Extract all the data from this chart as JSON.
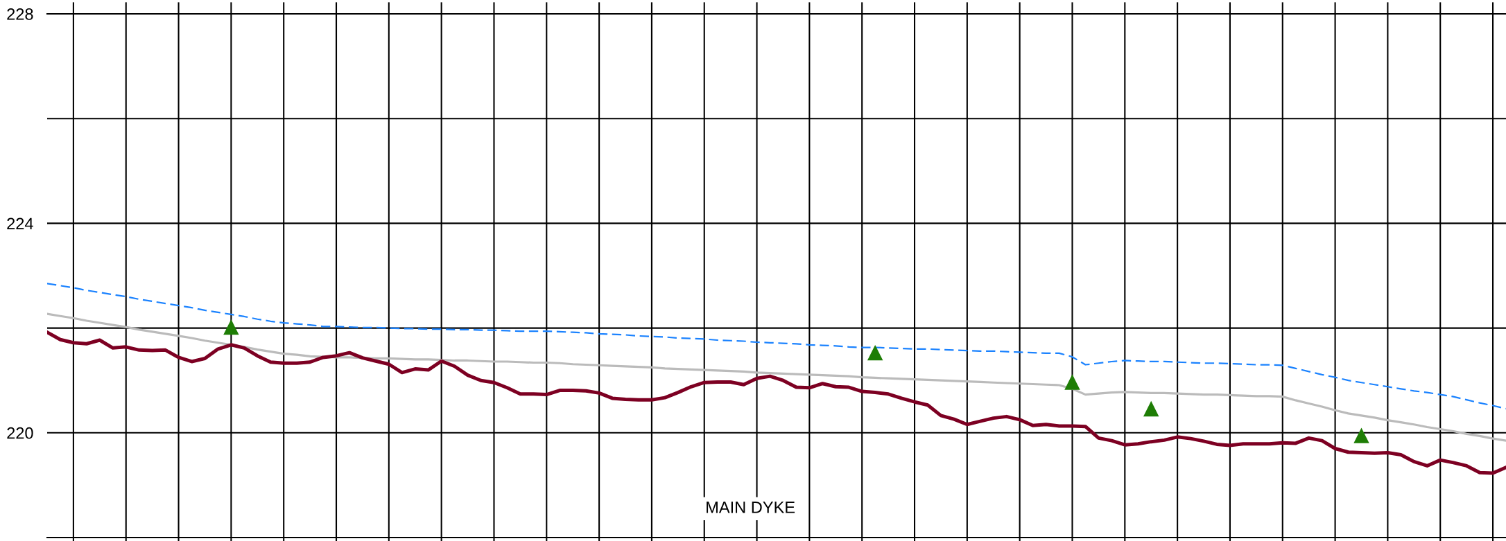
{
  "chart_data": {
    "type": "line",
    "categories": [
      null,
      null,
      null,
      null,
      null,
      null,
      null,
      null,
      null,
      null,
      null,
      null,
      null,
      null,
      null,
      null,
      null,
      null,
      null,
      null,
      null,
      null,
      null,
      null,
      null,
      null,
      null,
      null,
      null,
      null,
      null,
      null,
      null,
      null,
      null,
      null,
      null,
      null,
      null,
      null,
      null,
      null,
      null,
      null,
      null,
      null,
      null,
      null,
      null,
      null,
      null,
      null,
      null,
      null,
      null,
      null,
      null,
      null,
      null,
      null,
      null,
      null,
      null,
      null,
      null,
      null,
      null,
      null,
      null,
      null,
      null,
      null,
      null,
      null,
      null,
      null,
      null,
      null,
      null,
      null,
      null,
      null,
      null,
      null,
      null,
      null,
      null,
      null,
      null,
      null,
      null,
      null,
      null,
      null,
      null,
      null,
      null,
      null,
      null,
      null,
      null,
      null,
      null,
      null,
      null,
      null,
      null,
      null,
      null,
      null,
      null,
      null
    ],
    "series": [
      {
        "color": "#1a82ff",
        "line_style": "dashed",
        "values": [
          222.85,
          222.81,
          222.77,
          222.72,
          222.68,
          222.64,
          222.6,
          222.55,
          222.51,
          222.47,
          222.43,
          222.39,
          222.34,
          222.3,
          222.26,
          222.22,
          222.17,
          222.13,
          222.1,
          222.08,
          222.06,
          222.03,
          222.03,
          222.02,
          222.01,
          222.01,
          222.0,
          221.99,
          221.99,
          221.98,
          221.98,
          221.97,
          221.97,
          221.96,
          221.96,
          221.95,
          221.94,
          221.94,
          221.94,
          221.93,
          221.92,
          221.91,
          221.89,
          221.88,
          221.87,
          221.85,
          221.84,
          221.83,
          221.81,
          221.8,
          221.79,
          221.77,
          221.76,
          221.75,
          221.73,
          221.72,
          221.71,
          221.7,
          221.68,
          221.67,
          221.66,
          221.64,
          221.63,
          221.63,
          221.62,
          221.61,
          221.6,
          221.6,
          221.59,
          221.58,
          221.57,
          221.56,
          221.56,
          221.55,
          221.54,
          221.53,
          221.52,
          221.52,
          221.45,
          221.3,
          221.33,
          221.36,
          221.38,
          221.37,
          221.36,
          221.36,
          221.35,
          221.34,
          221.33,
          221.33,
          221.32,
          221.31,
          221.3,
          221.3,
          221.29,
          221.23,
          221.17,
          221.11,
          221.06,
          221.0,
          220.96,
          220.92,
          220.88,
          220.84,
          220.8,
          220.77,
          220.73,
          220.69,
          220.63,
          220.57,
          220.52,
          220.46
        ]
      },
      {
        "color": "#bbbbbb",
        "line_style": "solid",
        "values": [
          222.27,
          222.23,
          222.19,
          222.14,
          222.1,
          222.06,
          222.02,
          221.97,
          221.93,
          221.89,
          221.85,
          221.81,
          221.76,
          221.72,
          221.68,
          221.64,
          221.59,
          221.55,
          221.51,
          221.49,
          221.46,
          221.45,
          221.44,
          221.44,
          221.43,
          221.42,
          221.42,
          221.41,
          221.4,
          221.4,
          221.39,
          221.38,
          221.38,
          221.37,
          221.36,
          221.36,
          221.35,
          221.34,
          221.34,
          221.33,
          221.31,
          221.3,
          221.29,
          221.28,
          221.27,
          221.26,
          221.25,
          221.23,
          221.22,
          221.21,
          221.2,
          221.19,
          221.18,
          221.17,
          221.15,
          221.14,
          221.13,
          221.12,
          221.11,
          221.1,
          221.09,
          221.08,
          221.06,
          221.05,
          221.04,
          221.03,
          221.02,
          221.01,
          221.0,
          220.99,
          220.98,
          220.97,
          220.96,
          220.95,
          220.94,
          220.93,
          220.92,
          220.91,
          220.84,
          220.73,
          220.75,
          220.77,
          220.78,
          220.77,
          220.76,
          220.76,
          220.75,
          220.74,
          220.73,
          220.73,
          220.72,
          220.71,
          220.7,
          220.7,
          220.69,
          220.62,
          220.56,
          220.5,
          220.43,
          220.37,
          220.33,
          220.29,
          220.24,
          220.2,
          220.16,
          220.11,
          220.07,
          220.03,
          219.98,
          219.94,
          219.89,
          219.85
        ]
      },
      {
        "color": "#7d0022",
        "line_style": "solid",
        "values": [
          221.92,
          221.78,
          221.72,
          221.7,
          221.77,
          221.62,
          221.64,
          221.58,
          221.57,
          221.58,
          221.44,
          221.36,
          221.42,
          221.6,
          221.68,
          221.62,
          221.47,
          221.35,
          221.33,
          221.33,
          221.35,
          221.44,
          221.47,
          221.53,
          221.43,
          221.37,
          221.31,
          221.15,
          221.22,
          221.2,
          221.37,
          221.27,
          221.1,
          221.0,
          220.96,
          220.86,
          220.74,
          220.74,
          220.73,
          220.81,
          220.81,
          220.8,
          220.76,
          220.66,
          220.64,
          220.63,
          220.63,
          220.67,
          220.77,
          220.88,
          220.96,
          220.97,
          220.97,
          220.92,
          221.04,
          221.08,
          221.0,
          220.87,
          220.86,
          220.94,
          220.88,
          220.87,
          220.79,
          220.77,
          220.74,
          220.66,
          220.59,
          220.53,
          220.33,
          220.26,
          220.16,
          220.22,
          220.28,
          220.31,
          220.25,
          220.14,
          220.16,
          220.13,
          220.13,
          220.12,
          219.9,
          219.85,
          219.77,
          219.79,
          219.83,
          219.86,
          219.92,
          219.89,
          219.84,
          219.78,
          219.76,
          219.79,
          219.79,
          219.79,
          219.81,
          219.8,
          219.9,
          219.85,
          219.7,
          219.63,
          219.62,
          219.61,
          219.62,
          219.58,
          219.45,
          219.37,
          219.48,
          219.43,
          219.37,
          219.24,
          219.23,
          219.34
        ]
      },
      {
        "type": "scatter",
        "color": "#1e7d05",
        "marker": "triangle",
        "values": [
          null,
          null,
          null,
          null,
          null,
          null,
          null,
          null,
          null,
          null,
          null,
          null,
          null,
          null,
          222.02,
          null,
          null,
          null,
          null,
          null,
          null,
          null,
          null,
          null,
          null,
          null,
          null,
          null,
          null,
          null,
          null,
          null,
          null,
          null,
          null,
          null,
          null,
          null,
          null,
          null,
          null,
          null,
          null,
          null,
          null,
          null,
          null,
          null,
          null,
          null,
          null,
          null,
          null,
          null,
          null,
          null,
          null,
          null,
          null,
          null,
          null,
          null,
          null,
          221.53,
          null,
          null,
          null,
          null,
          null,
          null,
          null,
          null,
          null,
          null,
          null,
          null,
          null,
          null,
          220.97,
          null,
          null,
          null,
          null,
          null,
          220.46,
          null,
          null,
          null,
          null,
          null,
          null,
          null,
          null,
          null,
          null,
          null,
          null,
          null,
          null,
          null,
          219.95,
          null,
          null,
          null,
          null,
          null,
          null,
          null,
          null,
          null,
          null,
          null
        ]
      }
    ],
    "ylim": [
      218,
      228
    ],
    "yticks": [
      {
        "value": 218,
        "label": null
      },
      220,
      {
        "value": 222,
        "label": null
      },
      224,
      {
        "value": 226,
        "label": null
      },
      228
    ],
    "grid": true,
    "tick_labels": "y",
    "annotations": [
      "MAIN DYKE"
    ]
  }
}
